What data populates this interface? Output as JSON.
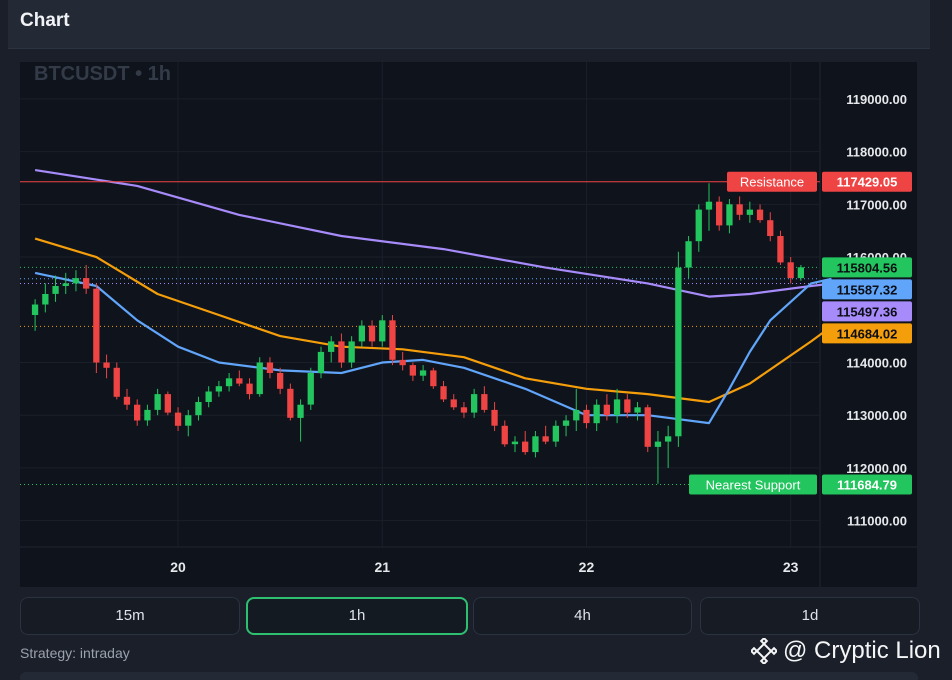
{
  "panel": {
    "title": "Chart"
  },
  "chart_data": {
    "type": "candlestick",
    "symbol_label": "BTCUSDT • 1h",
    "y_min": 110500,
    "y_max": 119700,
    "y_ticks": [
      "119000.00",
      "118000.00",
      "117000.00",
      "116000.00",
      "114000.00",
      "113000.00",
      "112000.00",
      "111000.00"
    ],
    "y_tick_values": [
      119000,
      118000,
      117000,
      116000,
      114000,
      113000,
      112000,
      111000
    ],
    "x_ticks": [
      {
        "label": "20",
        "index": 14
      },
      {
        "label": "21",
        "index": 34
      },
      {
        "label": "22",
        "index": 54
      },
      {
        "label": "23",
        "index": 74
      }
    ],
    "levels": [
      {
        "name": "Resistance",
        "label": "Resistance",
        "value_text": "117429.05",
        "value": 117429.05,
        "color": "#ef4444",
        "style": "solid"
      },
      {
        "name": "Nearest Support",
        "label": "Nearest Support",
        "value_text": "111684.79",
        "value": 111684.79,
        "color": "#22c55e",
        "style": "dotted"
      }
    ],
    "price_tags": [
      {
        "text": "115804.56",
        "value": 115804.56,
        "color": "#22c55e",
        "line": "#22c55e"
      },
      {
        "text": "115587.32",
        "value": 115587.32,
        "color": "#60a5fa",
        "line": "#60a5fa"
      },
      {
        "text": "115497.36",
        "value": 115497.36,
        "color": "#a78bfa",
        "line": "#a78bfa"
      },
      {
        "text": "114684.02",
        "value": 114684.02,
        "color": "#f59e0b",
        "line": "#f59e0b"
      }
    ],
    "ma_series": [
      {
        "color": "#a78bfa",
        "values": [
          [
            0,
            117650
          ],
          [
            10,
            117350
          ],
          [
            20,
            116800
          ],
          [
            30,
            116400
          ],
          [
            40,
            116150
          ],
          [
            50,
            115800
          ],
          [
            60,
            115500
          ],
          [
            66,
            115250
          ],
          [
            70,
            115300
          ],
          [
            76,
            115450
          ],
          [
            78,
            115497
          ]
        ]
      },
      {
        "color": "#f59e0b",
        "values": [
          [
            0,
            116350
          ],
          [
            6,
            116000
          ],
          [
            12,
            115300
          ],
          [
            18,
            114900
          ],
          [
            24,
            114500
          ],
          [
            30,
            114300
          ],
          [
            36,
            114250
          ],
          [
            42,
            114100
          ],
          [
            48,
            113700
          ],
          [
            54,
            113500
          ],
          [
            60,
            113400
          ],
          [
            66,
            113250
          ],
          [
            70,
            113600
          ],
          [
            76,
            114400
          ],
          [
            78,
            114684
          ]
        ]
      },
      {
        "color": "#60a5fa",
        "values": [
          [
            0,
            115700
          ],
          [
            6,
            115450
          ],
          [
            10,
            114800
          ],
          [
            14,
            114300
          ],
          [
            18,
            114000
          ],
          [
            24,
            113850
          ],
          [
            30,
            113800
          ],
          [
            34,
            114000
          ],
          [
            38,
            114050
          ],
          [
            42,
            113900
          ],
          [
            48,
            113500
          ],
          [
            54,
            113000
          ],
          [
            60,
            113000
          ],
          [
            66,
            112850
          ],
          [
            68,
            113500
          ],
          [
            70,
            114200
          ],
          [
            72,
            114800
          ],
          [
            76,
            115500
          ],
          [
            78,
            115587
          ]
        ]
      }
    ],
    "candles": [
      {
        "o": 114900,
        "h": 115200,
        "l": 114600,
        "c": 115100
      },
      {
        "o": 115100,
        "h": 115500,
        "l": 114950,
        "c": 115300
      },
      {
        "o": 115300,
        "h": 115650,
        "l": 115150,
        "c": 115450
      },
      {
        "o": 115450,
        "h": 115700,
        "l": 115300,
        "c": 115500
      },
      {
        "o": 115500,
        "h": 115750,
        "l": 115350,
        "c": 115600
      },
      {
        "o": 115600,
        "h": 115850,
        "l": 115300,
        "c": 115400
      },
      {
        "o": 115400,
        "h": 115500,
        "l": 113800,
        "c": 114000
      },
      {
        "o": 114000,
        "h": 114150,
        "l": 113700,
        "c": 113900
      },
      {
        "o": 113900,
        "h": 114000,
        "l": 113300,
        "c": 113350
      },
      {
        "o": 113350,
        "h": 113500,
        "l": 113100,
        "c": 113200
      },
      {
        "o": 113200,
        "h": 113300,
        "l": 112800,
        "c": 112900
      },
      {
        "o": 112900,
        "h": 113200,
        "l": 112800,
        "c": 113100
      },
      {
        "o": 113100,
        "h": 113500,
        "l": 113000,
        "c": 113400
      },
      {
        "o": 113400,
        "h": 113450,
        "l": 113000,
        "c": 113050
      },
      {
        "o": 113050,
        "h": 113150,
        "l": 112700,
        "c": 112800
      },
      {
        "o": 112800,
        "h": 113100,
        "l": 112600,
        "c": 113000
      },
      {
        "o": 113000,
        "h": 113350,
        "l": 112900,
        "c": 113250
      },
      {
        "o": 113250,
        "h": 113550,
        "l": 113150,
        "c": 113450
      },
      {
        "o": 113450,
        "h": 113650,
        "l": 113350,
        "c": 113550
      },
      {
        "o": 113550,
        "h": 113800,
        "l": 113450,
        "c": 113700
      },
      {
        "o": 113700,
        "h": 113850,
        "l": 113550,
        "c": 113600
      },
      {
        "o": 113600,
        "h": 113700,
        "l": 113300,
        "c": 113400
      },
      {
        "o": 113400,
        "h": 114100,
        "l": 113350,
        "c": 114000
      },
      {
        "o": 114000,
        "h": 114100,
        "l": 113700,
        "c": 113800
      },
      {
        "o": 113800,
        "h": 113900,
        "l": 113400,
        "c": 113500
      },
      {
        "o": 113500,
        "h": 113600,
        "l": 112900,
        "c": 112950
      },
      {
        "o": 112950,
        "h": 113300,
        "l": 112500,
        "c": 113200
      },
      {
        "o": 113200,
        "h": 113900,
        "l": 113100,
        "c": 113800
      },
      {
        "o": 113800,
        "h": 114300,
        "l": 113700,
        "c": 114200
      },
      {
        "o": 114200,
        "h": 114500,
        "l": 114000,
        "c": 114400
      },
      {
        "o": 114400,
        "h": 114550,
        "l": 113900,
        "c": 114000
      },
      {
        "o": 114000,
        "h": 114500,
        "l": 113900,
        "c": 114400
      },
      {
        "o": 114400,
        "h": 114800,
        "l": 114300,
        "c": 114700
      },
      {
        "o": 114700,
        "h": 114800,
        "l": 114300,
        "c": 114400
      },
      {
        "o": 114400,
        "h": 114900,
        "l": 114300,
        "c": 114800
      },
      {
        "o": 114800,
        "h": 114900,
        "l": 113950,
        "c": 114050
      },
      {
        "o": 114050,
        "h": 114200,
        "l": 113850,
        "c": 113950
      },
      {
        "o": 113950,
        "h": 114000,
        "l": 113650,
        "c": 113750
      },
      {
        "o": 113750,
        "h": 113950,
        "l": 113650,
        "c": 113850
      },
      {
        "o": 113850,
        "h": 113900,
        "l": 113500,
        "c": 113550
      },
      {
        "o": 113550,
        "h": 113650,
        "l": 113250,
        "c": 113300
      },
      {
        "o": 113300,
        "h": 113400,
        "l": 113100,
        "c": 113150
      },
      {
        "o": 113150,
        "h": 113250,
        "l": 112950,
        "c": 113050
      },
      {
        "o": 113050,
        "h": 113500,
        "l": 112950,
        "c": 113400
      },
      {
        "o": 113400,
        "h": 113550,
        "l": 113050,
        "c": 113100
      },
      {
        "o": 113100,
        "h": 113250,
        "l": 112700,
        "c": 112800
      },
      {
        "o": 112800,
        "h": 112900,
        "l": 112400,
        "c": 112450
      },
      {
        "o": 112450,
        "h": 112600,
        "l": 112300,
        "c": 112500
      },
      {
        "o": 112500,
        "h": 112700,
        "l": 112250,
        "c": 112300
      },
      {
        "o": 112300,
        "h": 112700,
        "l": 112200,
        "c": 112600
      },
      {
        "o": 112600,
        "h": 112800,
        "l": 112450,
        "c": 112500
      },
      {
        "o": 112500,
        "h": 112900,
        "l": 112400,
        "c": 112800
      },
      {
        "o": 112800,
        "h": 113000,
        "l": 112600,
        "c": 112900
      },
      {
        "o": 112900,
        "h": 113500,
        "l": 112700,
        "c": 113100
      },
      {
        "o": 113100,
        "h": 113200,
        "l": 112750,
        "c": 112850
      },
      {
        "o": 112850,
        "h": 113300,
        "l": 112700,
        "c": 113200
      },
      {
        "o": 113200,
        "h": 113400,
        "l": 112900,
        "c": 113000
      },
      {
        "o": 113000,
        "h": 113500,
        "l": 112850,
        "c": 113300
      },
      {
        "o": 113300,
        "h": 113400,
        "l": 112950,
        "c": 113050
      },
      {
        "o": 113050,
        "h": 113250,
        "l": 112900,
        "c": 113150
      },
      {
        "o": 113150,
        "h": 113200,
        "l": 112300,
        "c": 112400
      },
      {
        "o": 112400,
        "h": 112700,
        "l": 111700,
        "c": 112500
      },
      {
        "o": 112500,
        "h": 112800,
        "l": 112000,
        "c": 112600
      },
      {
        "o": 112600,
        "h": 116100,
        "l": 112400,
        "c": 115800
      },
      {
        "o": 115800,
        "h": 116400,
        "l": 115600,
        "c": 116300
      },
      {
        "o": 116300,
        "h": 117000,
        "l": 116100,
        "c": 116900
      },
      {
        "o": 116900,
        "h": 117400,
        "l": 116500,
        "c": 117050
      },
      {
        "o": 117050,
        "h": 117150,
        "l": 116500,
        "c": 116600
      },
      {
        "o": 116600,
        "h": 117100,
        "l": 116450,
        "c": 117000
      },
      {
        "o": 117000,
        "h": 117150,
        "l": 116700,
        "c": 116800
      },
      {
        "o": 116800,
        "h": 117050,
        "l": 116650,
        "c": 116900
      },
      {
        "o": 116900,
        "h": 117000,
        "l": 116650,
        "c": 116700
      },
      {
        "o": 116700,
        "h": 116850,
        "l": 116300,
        "c": 116400
      },
      {
        "o": 116400,
        "h": 116500,
        "l": 115850,
        "c": 115900
      },
      {
        "o": 115900,
        "h": 116000,
        "l": 115500,
        "c": 115600
      },
      {
        "o": 115600,
        "h": 115850,
        "l": 115550,
        "c": 115805
      }
    ]
  },
  "timeframes": [
    {
      "label": "15m",
      "active": false
    },
    {
      "label": "1h",
      "active": true
    },
    {
      "label": "4h",
      "active": false
    },
    {
      "label": "1d",
      "active": false
    }
  ],
  "strategy": {
    "text": "Strategy: intraday"
  },
  "watermark": {
    "text": "@ Cryptic Lion",
    "icon": "binance-diamond-icon"
  }
}
